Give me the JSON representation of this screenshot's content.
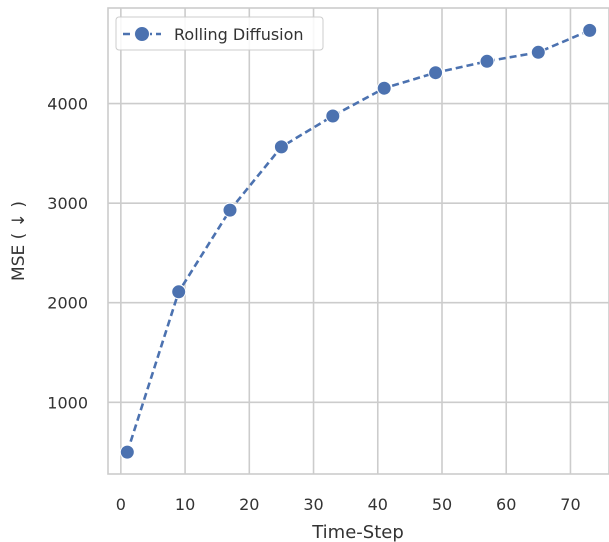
{
  "chart_data": {
    "type": "line",
    "xlabel": "Time-Step",
    "ylabel": "MSE ( ↓ )",
    "xlim": [
      -2,
      76
    ],
    "ylim": [
      280,
      4960
    ],
    "xticks": [
      0,
      10,
      20,
      30,
      40,
      50,
      60,
      70
    ],
    "yticks": [
      1000,
      2000,
      3000,
      4000
    ],
    "grid": true,
    "legend_position": "top-left",
    "series": [
      {
        "name": "Rolling Diffusion",
        "color": "#4c72b0",
        "line_style": "dashed",
        "marker": "circle",
        "x": [
          1,
          9,
          17,
          25,
          33,
          41,
          49,
          57,
          65,
          73
        ],
        "y": [
          500,
          2110,
          2930,
          3565,
          3875,
          4155,
          4310,
          4425,
          4515,
          4735
        ]
      }
    ]
  }
}
